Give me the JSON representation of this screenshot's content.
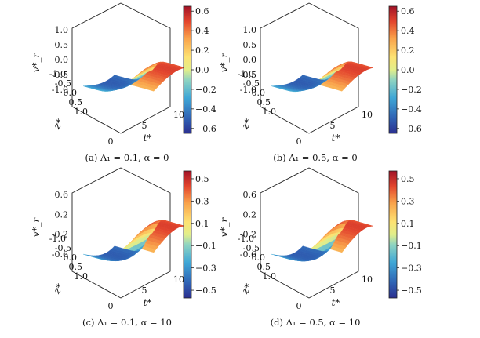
{
  "chart_data": [
    {
      "type": "surface",
      "caption": "(a) Λ₁ = 0.1, α = 0",
      "xlabel": "t*",
      "ylabel": "z*",
      "zlabel": "v*_r",
      "x_ticks": [
        "5",
        "10"
      ],
      "y_ticks": [
        "-1.0",
        "-0.5",
        "0.0",
        "0.5",
        "1.0"
      ],
      "z_ticks": [
        "-1.0",
        "-0.5",
        "0.0",
        "0.5",
        "1.0"
      ],
      "x_origin_label": "0",
      "xlim": [
        0,
        10
      ],
      "ylim": [
        -1,
        1
      ],
      "zlim": [
        -1,
        1
      ],
      "colorbar": {
        "min": -0.65,
        "max": 0.65,
        "ticks": [
          -0.6,
          -0.4,
          -0.2,
          0.0,
          0.2,
          0.4,
          0.6
        ],
        "tick_labels": [
          "−0.6",
          "−0.4",
          "−0.2",
          "0.0",
          "0.2",
          "0.4",
          "0.6"
        ]
      },
      "surface": {
        "amplitude": 0.65,
        "center": 4.6,
        "width": 1.1,
        "tilt": 0.55
      }
    },
    {
      "type": "surface",
      "caption": "(b) Λ₁ = 0.5, α = 0",
      "xlabel": "t*",
      "ylabel": "z*",
      "zlabel": "v*_r",
      "x_ticks": [
        "5",
        "10"
      ],
      "y_ticks": [
        "-1.0",
        "-0.5",
        "0.0",
        "0.5",
        "1.0"
      ],
      "z_ticks": [
        "-1.0",
        "-0.5",
        "0.0",
        "0.5",
        "1.0"
      ],
      "x_origin_label": "0",
      "xlim": [
        0,
        10
      ],
      "ylim": [
        -1,
        1
      ],
      "zlim": [
        -1,
        1
      ],
      "colorbar": {
        "min": -0.65,
        "max": 0.65,
        "ticks": [
          -0.6,
          -0.4,
          -0.2,
          0.0,
          0.2,
          0.4,
          0.6
        ],
        "tick_labels": [
          "−0.6",
          "−0.4",
          "−0.2",
          "0.0",
          "0.2",
          "0.4",
          "0.6"
        ]
      },
      "surface": {
        "amplitude": 0.65,
        "center": 4.6,
        "width": 1.0,
        "tilt": 0.55
      }
    },
    {
      "type": "surface",
      "caption": "(c) Λ₁ = 0.1, α = 10",
      "xlabel": "t*",
      "ylabel": "z*",
      "zlabel": "v*_r",
      "x_ticks": [
        "5",
        "10"
      ],
      "y_ticks": [
        "-1.0",
        "-0.5",
        "0.0",
        "0.5",
        "1.0"
      ],
      "z_ticks": [
        "-0.6",
        "-0.2",
        "0.2",
        "0.6"
      ],
      "x_origin_label": "0",
      "xlim": [
        0,
        10
      ],
      "ylim": [
        -1,
        1
      ],
      "zlim": [
        -0.6,
        0.6
      ],
      "colorbar": {
        "min": -0.57,
        "max": 0.57,
        "ticks": [
          -0.5,
          -0.3,
          -0.1,
          0.1,
          0.3,
          0.5
        ],
        "tick_labels": [
          "−0.5",
          "−0.3",
          "−0.1",
          "0.1",
          "0.3",
          "0.5"
        ]
      },
      "surface": {
        "amplitude": 0.57,
        "center": 4.7,
        "width": 0.9,
        "tilt": 0.7
      }
    },
    {
      "type": "surface",
      "caption": "(d) Λ₁ = 0.5, α = 10",
      "xlabel": "t*",
      "ylabel": "z*",
      "zlabel": "v*_r",
      "x_ticks": [
        "5",
        "10"
      ],
      "y_ticks": [
        "-1.0",
        "-0.5",
        "0.0",
        "0.5",
        "1.0"
      ],
      "z_ticks": [
        "-0.6",
        "-0.2",
        "0.2",
        "0.6"
      ],
      "x_origin_label": "0",
      "xlim": [
        0,
        10
      ],
      "ylim": [
        -1,
        1
      ],
      "zlim": [
        -0.6,
        0.6
      ],
      "colorbar": {
        "min": -0.57,
        "max": 0.57,
        "ticks": [
          -0.5,
          -0.3,
          -0.1,
          0.1,
          0.3,
          0.5
        ],
        "tick_labels": [
          "−0.5",
          "−0.3",
          "−0.1",
          "0.1",
          "0.3",
          "0.5"
        ]
      },
      "surface": {
        "amplitude": 0.57,
        "center": 4.7,
        "width": 0.85,
        "tilt": 0.7
      }
    }
  ]
}
